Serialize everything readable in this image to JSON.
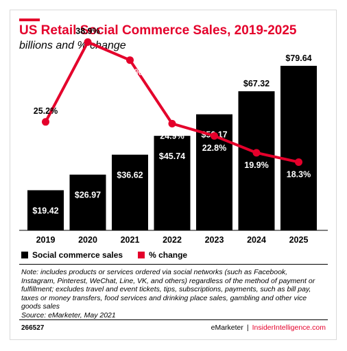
{
  "header": {
    "title": "US Retail Social Commerce Sales, 2019-2025",
    "subtitle": "billions and % change"
  },
  "legend": {
    "bars_label": "Social commerce sales",
    "line_label": "% change"
  },
  "colors": {
    "bars": "#000000",
    "line": "#e4002b",
    "accent": "#e4002b"
  },
  "note": {
    "lines": [
      "Note: includes products or services ordered via social networks (such as Facebook,",
      "Instagram, Pinterest, WeChat, Line, VK, and others) regardless of the method of payment or",
      "fulfillment; excludes travel and event tickets, tips, subscriptions, payments, such as bill pay,",
      "taxes or money transfers, food services and drinking place sales, gambling and other vice",
      "goods sales",
      "Source: eMarketer, May 2021"
    ]
  },
  "footer": {
    "id": "266527",
    "brand": "eMarketer",
    "separator": "|",
    "brand2": "InsiderIntelligence.com"
  },
  "chart_data": {
    "type": "bar",
    "title": "US Retail Social Commerce Sales, 2019-2025",
    "subtitle": "billions and % change",
    "categories": [
      "2019",
      "2020",
      "2021",
      "2022",
      "2023",
      "2024",
      "2025"
    ],
    "series": [
      {
        "name": "Social commerce sales",
        "type": "bar",
        "values": [
          19.42,
          26.97,
          36.62,
          45.74,
          56.17,
          67.32,
          79.64
        ],
        "labels": [
          "$19.42",
          "$26.97",
          "$36.62",
          "$45.74",
          "$56.17",
          "$67.32",
          "$79.64"
        ]
      },
      {
        "name": "% change",
        "type": "line",
        "values": [
          25.2,
          38.9,
          35.8,
          24.9,
          22.8,
          19.9,
          18.3
        ],
        "labels": [
          "25.2%",
          "38.9%",
          "35.8%",
          "24.9%",
          "22.8%",
          "19.9%",
          "18.3%"
        ]
      }
    ],
    "legend_position": "bottom-left",
    "grid": false
  }
}
